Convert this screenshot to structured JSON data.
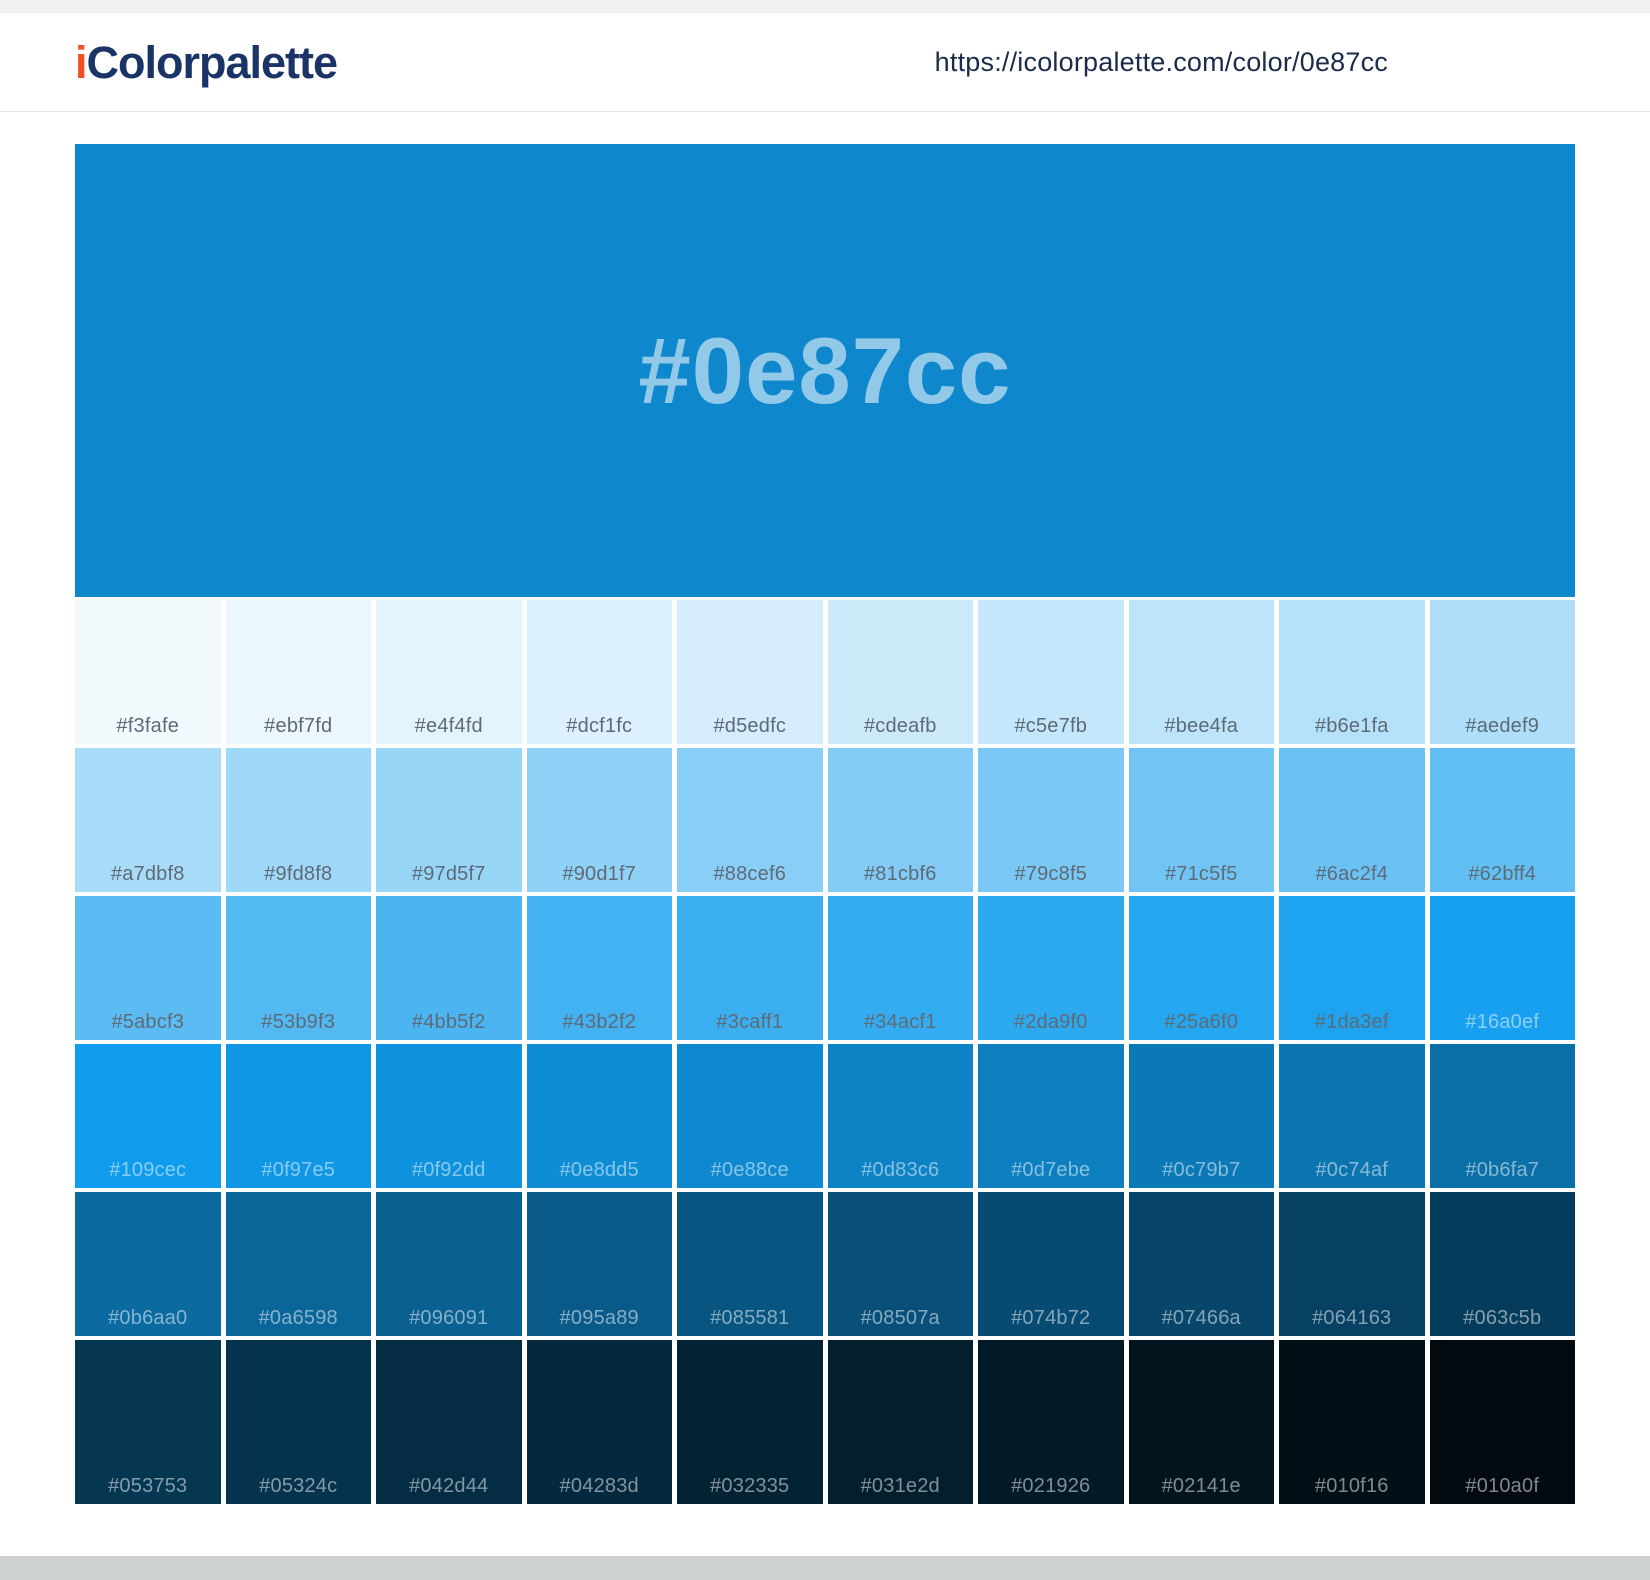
{
  "header": {
    "logo": {
      "prefix": "i",
      "rest": "Colorpalette",
      "prefix_color": "#f04e23",
      "rest_color": "#1b3467"
    },
    "url": "https://icolorpalette.com/color/0e87cc"
  },
  "hero": {
    "hex": "#0e87cc",
    "background": "#0e87cc"
  },
  "shades": {
    "rows": [
      [
        "#f3fafe",
        "#ebf7fd",
        "#e4f4fd",
        "#dcf1fc",
        "#d5edfc",
        "#cdeafb",
        "#c5e7fb",
        "#bee4fa",
        "#b6e1fa",
        "#aedef9"
      ],
      [
        "#a7dbf8",
        "#9fd8f8",
        "#97d5f7",
        "#90d1f7",
        "#88cef6",
        "#81cbf6",
        "#79c8f5",
        "#71c5f5",
        "#6ac2f4",
        "#62bff4"
      ],
      [
        "#5abcf3",
        "#53b9f3",
        "#4bb5f2",
        "#43b2f2",
        "#3caff1",
        "#34acf1",
        "#2da9f0",
        "#25a6f0",
        "#1da3ef",
        "#16a0ef"
      ],
      [
        "#109cec",
        "#0f97e5",
        "#0f92dd",
        "#0e8dd5",
        "#0e88ce",
        "#0d83c6",
        "#0d7ebe",
        "#0c79b7",
        "#0c74af",
        "#0b6fa7"
      ],
      [
        "#0b6aa0",
        "#0a6598",
        "#096091",
        "#095a89",
        "#085581",
        "#08507a",
        "#074b72",
        "#07466a",
        "#064163",
        "#063c5b"
      ],
      [
        "#053753",
        "#05324c",
        "#042d44",
        "#04283d",
        "#032335",
        "#031e2d",
        "#021926",
        "#02141e",
        "#010f16",
        "#010a0f"
      ]
    ],
    "label_dark_color": "#5e6b76",
    "label_light_color": "rgba(255,255,255,0.5)"
  }
}
